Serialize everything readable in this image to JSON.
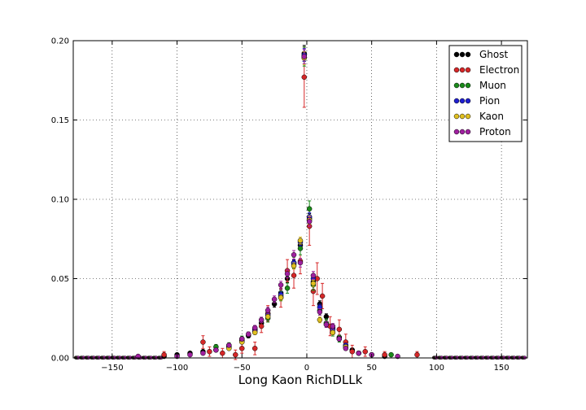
{
  "chart_data": {
    "type": "scatter",
    "title": "",
    "xlabel": "Long Kaon RichDLLk",
    "ylabel": "",
    "xlim": [
      -180,
      170
    ],
    "ylim": [
      0,
      0.2
    ],
    "xticks": [
      -150,
      -100,
      -50,
      0,
      50,
      100,
      150
    ],
    "xtick_labels": [
      "−150",
      "−100",
      "−50",
      "0",
      "50",
      "100",
      "150"
    ],
    "yticks": [
      0,
      0.05,
      0.1,
      0.15,
      0.2
    ],
    "ytick_labels": [
      "0.00",
      "0.05",
      "0.10",
      "0.15",
      "0.20"
    ],
    "grid": true,
    "legend_position": "top-right",
    "legend_marker": "●●●",
    "series": [
      {
        "name": "Ghost",
        "color": "#000000",
        "points": [
          [
            -110,
            0.001,
            0.0005
          ],
          [
            -100,
            0.002,
            0.0006
          ],
          [
            -90,
            0.003,
            0.0007
          ],
          [
            -80,
            0.004,
            0.0008
          ],
          [
            -70,
            0.005,
            0.001
          ],
          [
            -60,
            0.007,
            0.001
          ],
          [
            -50,
            0.011,
            0.0012
          ],
          [
            -45,
            0.014,
            0.0013
          ],
          [
            -40,
            0.018,
            0.0015
          ],
          [
            -35,
            0.022,
            0.0016
          ],
          [
            -30,
            0.028,
            0.0018
          ],
          [
            -25,
            0.034,
            0.002
          ],
          [
            -20,
            0.041,
            0.0022
          ],
          [
            -15,
            0.05,
            0.0024
          ],
          [
            -10,
            0.059,
            0.0026
          ],
          [
            -5,
            0.071,
            0.0028
          ],
          [
            -2,
            0.192,
            0.005
          ],
          [
            2,
            0.088,
            0.003
          ],
          [
            5,
            0.048,
            0.0024
          ],
          [
            10,
            0.034,
            0.002
          ],
          [
            15,
            0.026,
            0.0018
          ],
          [
            20,
            0.019,
            0.0016
          ],
          [
            25,
            0.013,
            0.0014
          ],
          [
            30,
            0.008,
            0.0012
          ],
          [
            35,
            0.005,
            0.001
          ],
          [
            40,
            0.003,
            0.0008
          ],
          [
            50,
            0.002,
            0.0006
          ],
          [
            60,
            0.001,
            0.0005
          ]
        ]
      },
      {
        "name": "Electron",
        "color": "#d62728",
        "points": [
          [
            -110,
            0.002,
            0.002
          ],
          [
            -80,
            0.01,
            0.004
          ],
          [
            -75,
            0.004,
            0.003
          ],
          [
            -65,
            0.003,
            0.003
          ],
          [
            -55,
            0.002,
            0.003
          ],
          [
            -50,
            0.006,
            0.003
          ],
          [
            -40,
            0.006,
            0.004
          ],
          [
            -35,
            0.02,
            0.004
          ],
          [
            -30,
            0.028,
            0.005
          ],
          [
            -20,
            0.038,
            0.006
          ],
          [
            -15,
            0.055,
            0.007
          ],
          [
            -10,
            0.052,
            0.008
          ],
          [
            -5,
            0.061,
            0.008
          ],
          [
            -2,
            0.177,
            0.019
          ],
          [
            2,
            0.083,
            0.012
          ],
          [
            5,
            0.042,
            0.009
          ],
          [
            8,
            0.05,
            0.01
          ],
          [
            12,
            0.039,
            0.008
          ],
          [
            18,
            0.02,
            0.006
          ],
          [
            25,
            0.018,
            0.006
          ],
          [
            30,
            0.01,
            0.005
          ],
          [
            35,
            0.004,
            0.004
          ],
          [
            45,
            0.004,
            0.003
          ],
          [
            60,
            0.002,
            0.002
          ],
          [
            85,
            0.002,
            0.002
          ]
        ]
      },
      {
        "name": "Muon",
        "color": "#1a8a1a",
        "points": [
          [
            -70,
            0.007,
            0.0015
          ],
          [
            -60,
            0.008,
            0.0016
          ],
          [
            -50,
            0.012,
            0.0018
          ],
          [
            -40,
            0.018,
            0.002
          ],
          [
            -30,
            0.025,
            0.0024
          ],
          [
            -20,
            0.039,
            0.003
          ],
          [
            -15,
            0.044,
            0.0032
          ],
          [
            -10,
            0.06,
            0.0035
          ],
          [
            -5,
            0.069,
            0.004
          ],
          [
            -2,
            0.19,
            0.006
          ],
          [
            2,
            0.094,
            0.005
          ],
          [
            5,
            0.046,
            0.0035
          ],
          [
            10,
            0.03,
            0.003
          ],
          [
            15,
            0.022,
            0.0026
          ],
          [
            20,
            0.016,
            0.0022
          ],
          [
            25,
            0.012,
            0.002
          ],
          [
            30,
            0.007,
            0.0016
          ],
          [
            40,
            0.003,
            0.0012
          ],
          [
            65,
            0.002,
            0.001
          ]
        ]
      },
      {
        "name": "Pion",
        "color": "#1f1fd0",
        "points": [
          [
            -60,
            0.007,
            0.0008
          ],
          [
            -50,
            0.011,
            0.001
          ],
          [
            -40,
            0.017,
            0.0012
          ],
          [
            -30,
            0.027,
            0.0014
          ],
          [
            -20,
            0.04,
            0.0016
          ],
          [
            -10,
            0.06,
            0.002
          ],
          [
            -5,
            0.073,
            0.0022
          ],
          [
            -2,
            0.191,
            0.004
          ],
          [
            2,
            0.089,
            0.0025
          ],
          [
            5,
            0.05,
            0.002
          ],
          [
            10,
            0.032,
            0.0018
          ],
          [
            20,
            0.018,
            0.0014
          ],
          [
            30,
            0.008,
            0.001
          ]
        ]
      },
      {
        "name": "Kaon",
        "color": "#e0c020",
        "points": [
          [
            -60,
            0.006,
            0.0008
          ],
          [
            -50,
            0.01,
            0.001
          ],
          [
            -40,
            0.016,
            0.0012
          ],
          [
            -30,
            0.026,
            0.0014
          ],
          [
            -20,
            0.038,
            0.0016
          ],
          [
            -10,
            0.058,
            0.002
          ],
          [
            -5,
            0.074,
            0.0022
          ],
          [
            -2,
            0.189,
            0.004
          ],
          [
            2,
            0.087,
            0.0025
          ],
          [
            5,
            0.047,
            0.002
          ],
          [
            10,
            0.024,
            0.0018
          ],
          [
            20,
            0.016,
            0.0014
          ],
          [
            30,
            0.007,
            0.001
          ]
        ]
      },
      {
        "name": "Proton",
        "color": "#a020a0",
        "points": [
          [
            -130,
            0.001,
            0.0005
          ],
          [
            -100,
            0.001,
            0.0006
          ],
          [
            -90,
            0.002,
            0.0007
          ],
          [
            -80,
            0.003,
            0.0008
          ],
          [
            -70,
            0.005,
            0.001
          ],
          [
            -60,
            0.008,
            0.0011
          ],
          [
            -50,
            0.012,
            0.0013
          ],
          [
            -45,
            0.015,
            0.0014
          ],
          [
            -40,
            0.019,
            0.0015
          ],
          [
            -35,
            0.024,
            0.0017
          ],
          [
            -30,
            0.03,
            0.0019
          ],
          [
            -25,
            0.037,
            0.0021
          ],
          [
            -20,
            0.046,
            0.0023
          ],
          [
            -15,
            0.053,
            0.0025
          ],
          [
            -10,
            0.065,
            0.0027
          ],
          [
            -5,
            0.06,
            0.0027
          ],
          [
            -2,
            0.19,
            0.0045
          ],
          [
            2,
            0.086,
            0.003
          ],
          [
            5,
            0.052,
            0.0025
          ],
          [
            10,
            0.029,
            0.002
          ],
          [
            15,
            0.021,
            0.0018
          ],
          [
            20,
            0.02,
            0.0017
          ],
          [
            25,
            0.012,
            0.0014
          ],
          [
            30,
            0.006,
            0.0012
          ],
          [
            40,
            0.003,
            0.0009
          ],
          [
            50,
            0.002,
            0.0006
          ],
          [
            70,
            0.001,
            0.0005
          ]
        ]
      }
    ]
  }
}
